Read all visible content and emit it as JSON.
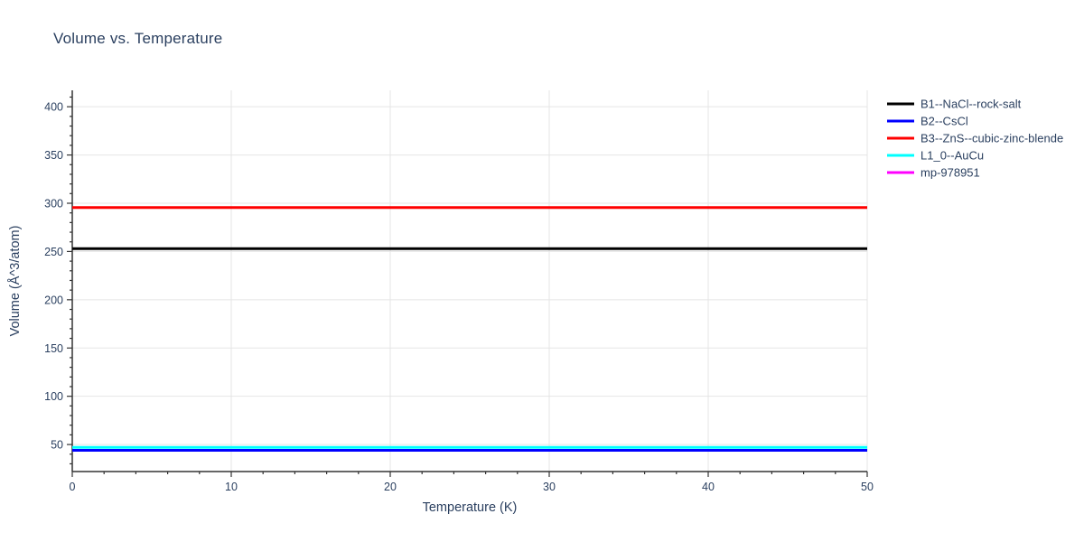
{
  "title": "Volume vs. Temperature",
  "colors": {
    "text": "#2a3f5f",
    "axis_line": "#333333",
    "gridline": "#e5e5e5",
    "background": "#ffffff"
  },
  "chart_data": {
    "type": "line",
    "title": "Volume vs. Temperature",
    "xlabel": "Temperature (K)",
    "ylabel": "Volume (Å^3/atom)",
    "xlim": [
      0,
      50
    ],
    "ylim": [
      22,
      417
    ],
    "x_major_ticks": [
      0,
      10,
      20,
      30,
      40,
      50
    ],
    "x_minor_step": 2,
    "y_major_ticks": [
      50,
      100,
      150,
      200,
      250,
      300,
      350,
      400
    ],
    "y_minor_step": 10,
    "grid": "major",
    "legend_position": "outside-top-right",
    "series": [
      {
        "name": "B1--NaCl--rock-salt",
        "color": "#000000",
        "x": [
          0,
          50
        ],
        "values": [
          253,
          253
        ],
        "line_width": 3,
        "draw_order": 1
      },
      {
        "name": "B2--CsCl",
        "color": "#0000ff",
        "x": [
          0,
          50
        ],
        "values": [
          44,
          44
        ],
        "line_width": 3,
        "draw_order": 4
      },
      {
        "name": "B3--ZnS--cubic-zinc-blende",
        "color": "#ff0000",
        "x": [
          0,
          50
        ],
        "values": [
          295.5,
          295.5
        ],
        "line_width": 3,
        "draw_order": 2
      },
      {
        "name": "L1_0--AuCu",
        "color": "#00ffff",
        "x": [
          0,
          50
        ],
        "values": [
          47,
          47
        ],
        "line_width": 3,
        "draw_order": 3
      },
      {
        "name": "mp-978951",
        "color": "#ff00ff",
        "x": [
          0,
          50
        ],
        "values": [
          44,
          44
        ],
        "line_width": 3,
        "draw_order": 0
      }
    ]
  }
}
